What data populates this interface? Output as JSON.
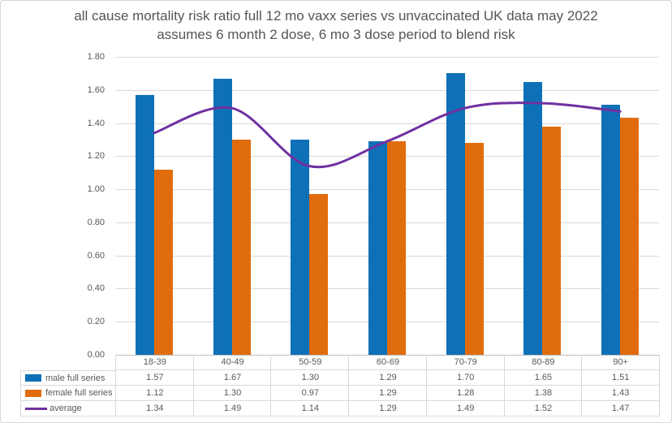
{
  "title": {
    "line1": "all cause mortality risk ratio full 12 mo vaxx series vs unvaccinated UK data may 2022",
    "line2": "assumes 6 month 2 dose, 6 mo 3 dose period to blend risk"
  },
  "colors": {
    "male": "#0e71b8",
    "female": "#e16c0d",
    "average": "#7030a0",
    "gridline": "#d9d9d9",
    "axis_line": "#bfbfbf",
    "table_border": "#d9d9d9",
    "text": "#595959",
    "title_text": "#555555"
  },
  "chart_data": {
    "type": "bar",
    "title": "all cause mortality risk ratio full 12 mo vaxx series vs unvaccinated UK data may 2022 assumes 6 month 2 dose, 6 mo 3 dose period to blend risk",
    "categories": [
      "18-39",
      "40-49",
      "50-59",
      "60-69",
      "70-79",
      "80-89",
      "90+"
    ],
    "series": [
      {
        "name": "male full series",
        "type": "bar",
        "color": "#0e71b8",
        "values": [
          1.57,
          1.67,
          1.3,
          1.29,
          1.7,
          1.65,
          1.51
        ]
      },
      {
        "name": "female full series",
        "type": "bar",
        "color": "#e16c0d",
        "values": [
          1.12,
          1.3,
          0.97,
          1.29,
          1.28,
          1.38,
          1.43
        ]
      },
      {
        "name": "average",
        "type": "line",
        "smooth": true,
        "color": "#7030a0",
        "values": [
          1.34,
          1.49,
          1.14,
          1.29,
          1.49,
          1.52,
          1.47
        ]
      }
    ],
    "xlabel": "",
    "ylabel": "",
    "ylim": [
      0.0,
      1.8
    ],
    "ytick_step": 0.2,
    "ytick_labels": [
      "0.00",
      "0.20",
      "0.40",
      "0.60",
      "0.80",
      "1.00",
      "1.20",
      "1.40",
      "1.60",
      "1.80"
    ],
    "grid": true,
    "legend_position": "data-table-left",
    "data_table_shown": true,
    "value_format": "0.00"
  }
}
